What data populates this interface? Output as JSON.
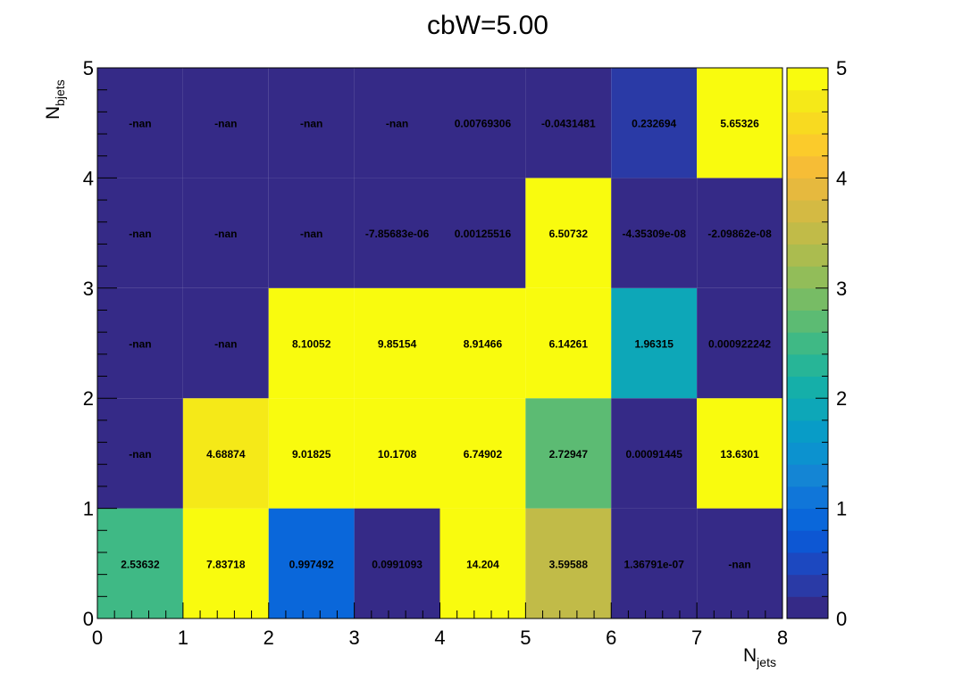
{
  "chart_data": {
    "type": "heatmap",
    "title": "cbW=5.00",
    "xlabel": {
      "main": "N",
      "sub": "jets"
    },
    "ylabel": {
      "main": "N",
      "sub": "bjets"
    },
    "xlim": [
      0,
      8
    ],
    "ylim": [
      0,
      5
    ],
    "x_ticks": [
      "0",
      "1",
      "2",
      "3",
      "4",
      "5",
      "6",
      "7",
      "8"
    ],
    "y_ticks": [
      "0",
      "1",
      "2",
      "3",
      "4",
      "5"
    ],
    "zlim": [
      0,
      5
    ],
    "z_ticks": [
      "0",
      "1",
      "2",
      "3",
      "4",
      "5"
    ],
    "palette": [
      "#352a87",
      "#2a3aa6",
      "#1c48c0",
      "#0d57d3",
      "#0a67da",
      "#1076d9",
      "#1485d4",
      "#0c92cf",
      "#089cc7",
      "#0da7b8",
      "#15afa9",
      "#27b597",
      "#3fb985",
      "#5cbb73",
      "#77bc65",
      "#92bd59",
      "#abbc4f",
      "#c1bb48",
      "#d4ba43",
      "#e6b93e",
      "#f6bd36",
      "#fbcb2b",
      "#f8da20",
      "#f5e918",
      "#f9fb0e"
    ],
    "rows": [
      {
        "nbjets": 0,
        "cells": [
          {
            "label": "2.53632",
            "value": 2.53632
          },
          {
            "label": "7.83718",
            "value": 7.83718
          },
          {
            "label": "0.997492",
            "value": 0.997492
          },
          {
            "label": "0.0991093",
            "value": 0.0991093
          },
          {
            "label": "14.204",
            "value": 14.204
          },
          {
            "label": "3.59588",
            "value": 3.59588
          },
          {
            "label": "1.36791e-07",
            "value": 1.36791e-07
          },
          {
            "label": "-nan",
            "value": null
          }
        ]
      },
      {
        "nbjets": 1,
        "cells": [
          {
            "label": "-nan",
            "value": null
          },
          {
            "label": "4.68874",
            "value": 4.68874
          },
          {
            "label": "9.01825",
            "value": 9.01825
          },
          {
            "label": "10.1708",
            "value": 10.1708
          },
          {
            "label": "6.74902",
            "value": 6.74902
          },
          {
            "label": "2.72947",
            "value": 2.72947
          },
          {
            "label": "0.00091445",
            "value": 0.00091445
          },
          {
            "label": "13.6301",
            "value": 13.6301
          }
        ]
      },
      {
        "nbjets": 2,
        "cells": [
          {
            "label": "-nan",
            "value": null
          },
          {
            "label": "-nan",
            "value": null
          },
          {
            "label": "8.10052",
            "value": 8.10052
          },
          {
            "label": "9.85154",
            "value": 9.85154
          },
          {
            "label": "8.91466",
            "value": 8.91466
          },
          {
            "label": "6.14261",
            "value": 6.14261
          },
          {
            "label": "1.96315",
            "value": 1.96315
          },
          {
            "label": "0.000922242",
            "value": 0.000922242
          }
        ]
      },
      {
        "nbjets": 3,
        "cells": [
          {
            "label": "-nan",
            "value": null
          },
          {
            "label": "-nan",
            "value": null
          },
          {
            "label": "-nan",
            "value": null
          },
          {
            "label": "-7.85683e-06",
            "value": -7.85683e-06
          },
          {
            "label": "0.00125516",
            "value": 0.00125516
          },
          {
            "label": "6.50732",
            "value": 6.50732
          },
          {
            "label": "-4.35309e-08",
            "value": -4.35309e-08
          },
          {
            "label": "-2.09862e-08",
            "value": -2.09862e-08
          }
        ]
      },
      {
        "nbjets": 4,
        "cells": [
          {
            "label": "-nan",
            "value": null
          },
          {
            "label": "-nan",
            "value": null
          },
          {
            "label": "-nan",
            "value": null
          },
          {
            "label": "-nan",
            "value": null
          },
          {
            "label": "0.00769306",
            "value": 0.00769306
          },
          {
            "label": "-0.0431481",
            "value": -0.0431481
          },
          {
            "label": "0.232694",
            "value": 0.232694
          },
          {
            "label": "5.65326",
            "value": 5.65326
          }
        ]
      }
    ]
  }
}
